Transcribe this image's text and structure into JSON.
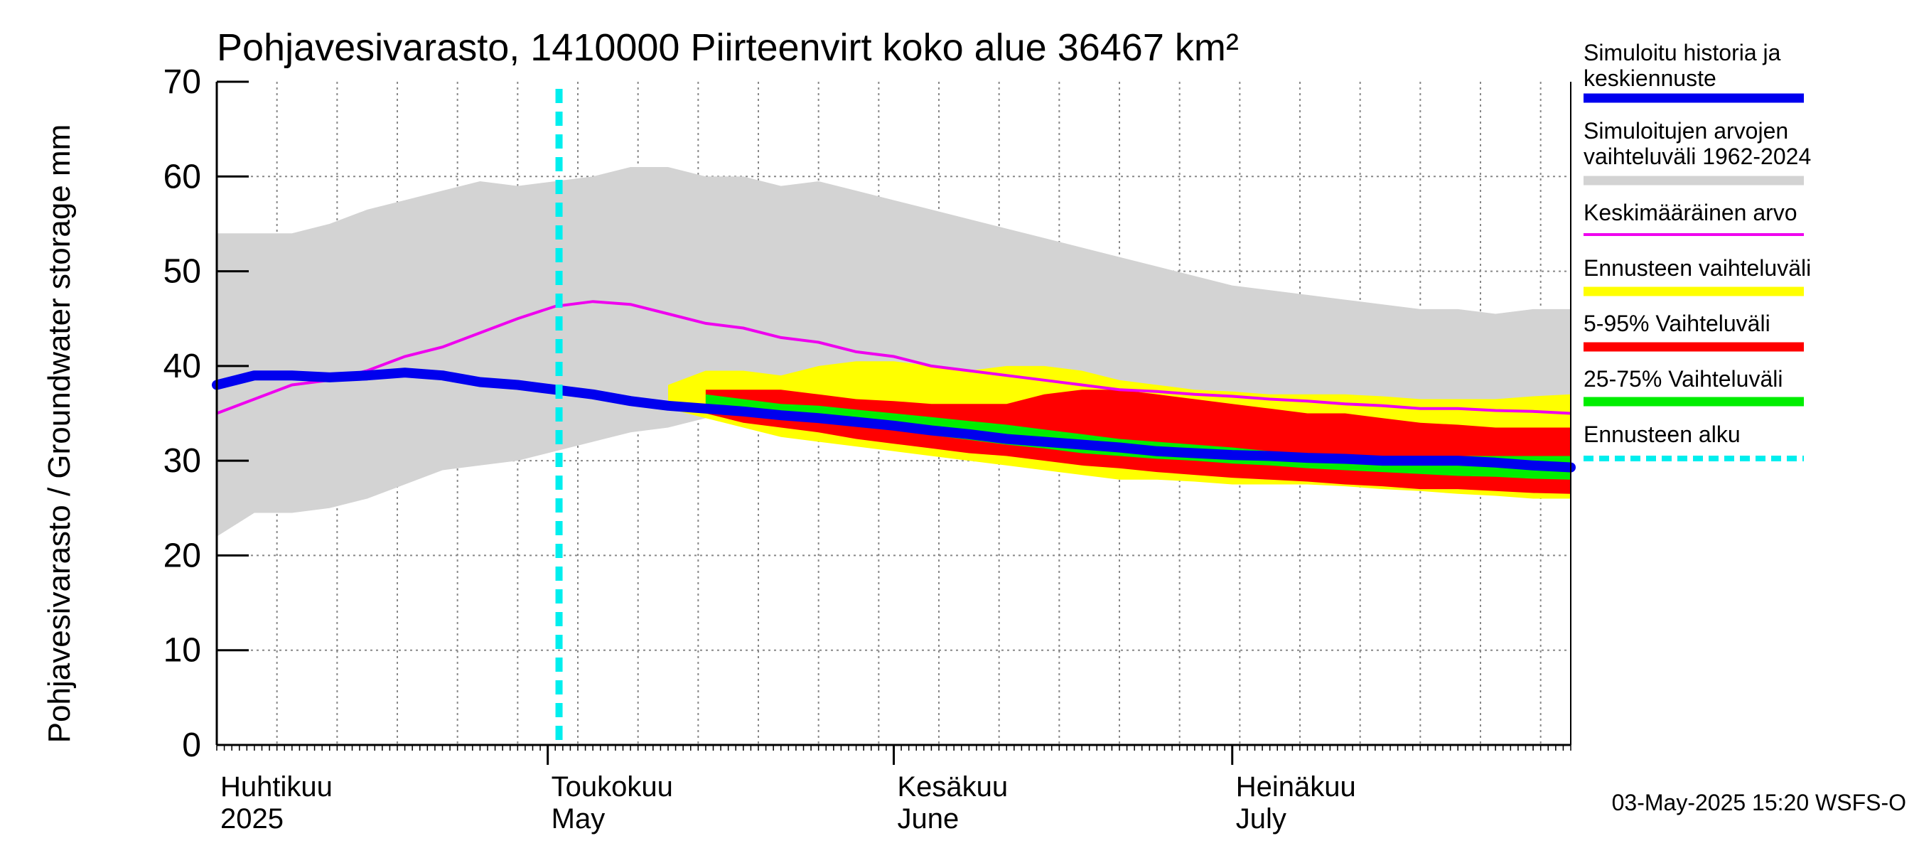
{
  "chart_data": {
    "type": "area",
    "title": "Pohjavesivarasto, 1410000 Piirteenvirt koko alue 36467 km²",
    "ylabel": "Pohjavesivarasto / Groundwater storage   mm",
    "ylim": [
      0,
      70
    ],
    "yticks": [
      "0",
      "10",
      "20",
      "30",
      "40",
      "50",
      "60",
      "70"
    ],
    "x_days": [
      0,
      5,
      10,
      15,
      20,
      25,
      30,
      35,
      40,
      45,
      50,
      55,
      60,
      65,
      70,
      75,
      80,
      85,
      90,
      95,
      100,
      105,
      110,
      115,
      120,
      125,
      130,
      135,
      140,
      145,
      150,
      155,
      160,
      165,
      170,
      175,
      180
    ],
    "xlim_days": [
      0,
      180
    ],
    "month_labels": [
      {
        "day": 0,
        "line1": "Huhtikuu",
        "line2": "2025"
      },
      {
        "day": 44,
        "line1": "Toukokuu",
        "line2": "May"
      },
      {
        "day": 90,
        "line1": "Kesäkuu",
        "line2": "June"
      },
      {
        "day": 135,
        "line1": "Heinäkuu",
        "line2": "July"
      }
    ],
    "forecast_start_day": 45.5,
    "series": [
      {
        "name": "Simuloitujen arvojen vaihteluväli 1962-2024",
        "kind": "band",
        "color": "#d3d3d3",
        "lower": [
          22,
          24.5,
          24.5,
          25,
          26,
          27.5,
          29,
          29.5,
          30,
          31,
          32,
          33,
          33.5,
          34.5,
          35,
          35,
          35,
          34.5,
          34,
          33.5,
          33,
          32.5,
          32,
          31.5,
          31,
          30.5,
          30,
          30,
          29.5,
          29,
          29,
          28.5,
          28,
          27.5,
          27,
          26.5,
          26.5
        ],
        "upper": [
          54,
          54,
          54,
          55,
          56.5,
          57.5,
          58.5,
          59.5,
          59,
          59.5,
          60,
          61,
          61,
          60,
          60,
          59,
          59.5,
          58.5,
          57.5,
          56.5,
          55.5,
          54.5,
          53.5,
          52.5,
          51.5,
          50.5,
          49.5,
          48.5,
          48,
          47.5,
          47,
          46.5,
          46,
          46,
          45.5,
          46,
          46
        ]
      },
      {
        "name": "Keskimääräinen arvo",
        "kind": "line",
        "color": "#ee00ee",
        "values": [
          35,
          36.5,
          38,
          38.5,
          39.5,
          41,
          42,
          43.5,
          45,
          46.3,
          46.8,
          46.5,
          45.5,
          44.5,
          44,
          43,
          42.5,
          41.5,
          41,
          40,
          39.5,
          39,
          38.5,
          38,
          37.5,
          37.3,
          37,
          36.8,
          36.5,
          36.3,
          36,
          35.8,
          35.5,
          35.5,
          35.3,
          35.2,
          35
        ]
      },
      {
        "name": "Ennusteen vaihteluväli",
        "kind": "band",
        "color": "#ffff00",
        "lower": [
          null,
          null,
          null,
          null,
          null,
          null,
          null,
          null,
          null,
          null,
          null,
          null,
          35.5,
          34.5,
          33.5,
          32.5,
          32,
          31.5,
          31,
          30.5,
          30,
          29.5,
          29,
          28.5,
          28,
          28,
          27.8,
          27.5,
          27.5,
          27.5,
          27.3,
          27,
          26.8,
          26.5,
          26.3,
          26,
          26
        ],
        "upper": [
          null,
          null,
          null,
          null,
          null,
          null,
          null,
          null,
          null,
          null,
          null,
          null,
          38,
          39.5,
          39.5,
          39,
          40,
          40.5,
          40.5,
          40,
          39.5,
          40,
          40,
          39.5,
          38.5,
          38,
          37.5,
          37.3,
          37,
          37,
          37,
          36.8,
          36.5,
          36.5,
          36.5,
          36.8,
          37
        ]
      },
      {
        "name": "5-95% Vaihteluväli",
        "kind": "band",
        "color": "#ff0000",
        "lower": [
          null,
          null,
          null,
          null,
          null,
          null,
          null,
          null,
          null,
          null,
          null,
          null,
          null,
          35,
          34,
          33.5,
          33,
          32.3,
          31.8,
          31.3,
          30.8,
          30.5,
          30,
          29.5,
          29.2,
          28.8,
          28.5,
          28.2,
          28,
          27.8,
          27.5,
          27.3,
          27,
          27,
          26.8,
          26.6,
          26.5
        ],
        "upper": [
          null,
          null,
          null,
          null,
          null,
          null,
          null,
          null,
          null,
          null,
          null,
          null,
          null,
          37.5,
          37.5,
          37.5,
          37,
          36.5,
          36.3,
          36,
          36,
          36,
          37,
          37.5,
          37.5,
          37,
          36.5,
          36,
          35.5,
          35,
          35,
          34.5,
          34,
          33.8,
          33.5,
          33.5,
          33.5
        ]
      },
      {
        "name": "25-75% Vaihteluväli",
        "kind": "band",
        "color": "#00ee00",
        "lower": [
          null,
          null,
          null,
          null,
          null,
          null,
          null,
          null,
          null,
          null,
          null,
          null,
          null,
          36,
          35.5,
          35,
          34.5,
          33.7,
          33.2,
          32.7,
          32.2,
          31.7,
          31.3,
          30.8,
          30.5,
          30.2,
          30,
          29.7,
          29.5,
          29.2,
          29,
          28.8,
          28.6,
          28.4,
          28.3,
          28.1,
          28
        ]
      },
      {
        "name": "25-75% Vaihteluväli upper helper",
        "kind": "helper",
        "color": "#00ee00",
        "values": [
          null,
          null,
          null,
          null,
          null,
          null,
          null,
          null,
          null,
          null,
          null,
          null,
          null,
          37,
          36.5,
          36,
          35.8,
          35.4,
          35,
          34.6,
          34.2,
          33.8,
          33.3,
          32.8,
          32.3,
          32,
          31.7,
          31.4,
          31,
          30.8,
          30.6,
          30.5,
          30.4,
          30.5,
          30.5,
          30.5,
          30.5
        ]
      },
      {
        "name": "Simuloitu historia ja keskiennuste",
        "kind": "line",
        "color": "#0000ee",
        "values": [
          38,
          39,
          39,
          38.8,
          39,
          39.3,
          39,
          38.3,
          38,
          37.5,
          37,
          36.3,
          35.8,
          35.5,
          35.2,
          34.8,
          34.5,
          34.1,
          33.7,
          33.2,
          32.8,
          32.3,
          32,
          31.7,
          31.4,
          31,
          30.8,
          30.6,
          30.5,
          30.3,
          30.2,
          30,
          30,
          30,
          29.8,
          29.5,
          29.3
        ]
      }
    ],
    "legend": [
      {
        "label": "Simuloitu historia ja keskiennuste",
        "color": "#0000ee",
        "style": "solid"
      },
      {
        "label": "Simuloitujen arvojen vaihteluväli 1962-2024",
        "color": "#d3d3d3",
        "style": "solid"
      },
      {
        "label": "Keskimääräinen arvo",
        "color": "#ee00ee",
        "style": "thin"
      },
      {
        "label": "Ennusteen vaihteluväli",
        "color": "#ffff00",
        "style": "solid"
      },
      {
        "label": "5-95% Vaihteluväli",
        "color": "#ff0000",
        "style": "solid"
      },
      {
        "label": "25-75% Vaihteluväli",
        "color": "#00ee00",
        "style": "solid"
      },
      {
        "label": "Ennusteen alku",
        "color": "#00eeee",
        "style": "dashed"
      }
    ],
    "footer": "03-May-2025 15:20 WSFS-O"
  }
}
